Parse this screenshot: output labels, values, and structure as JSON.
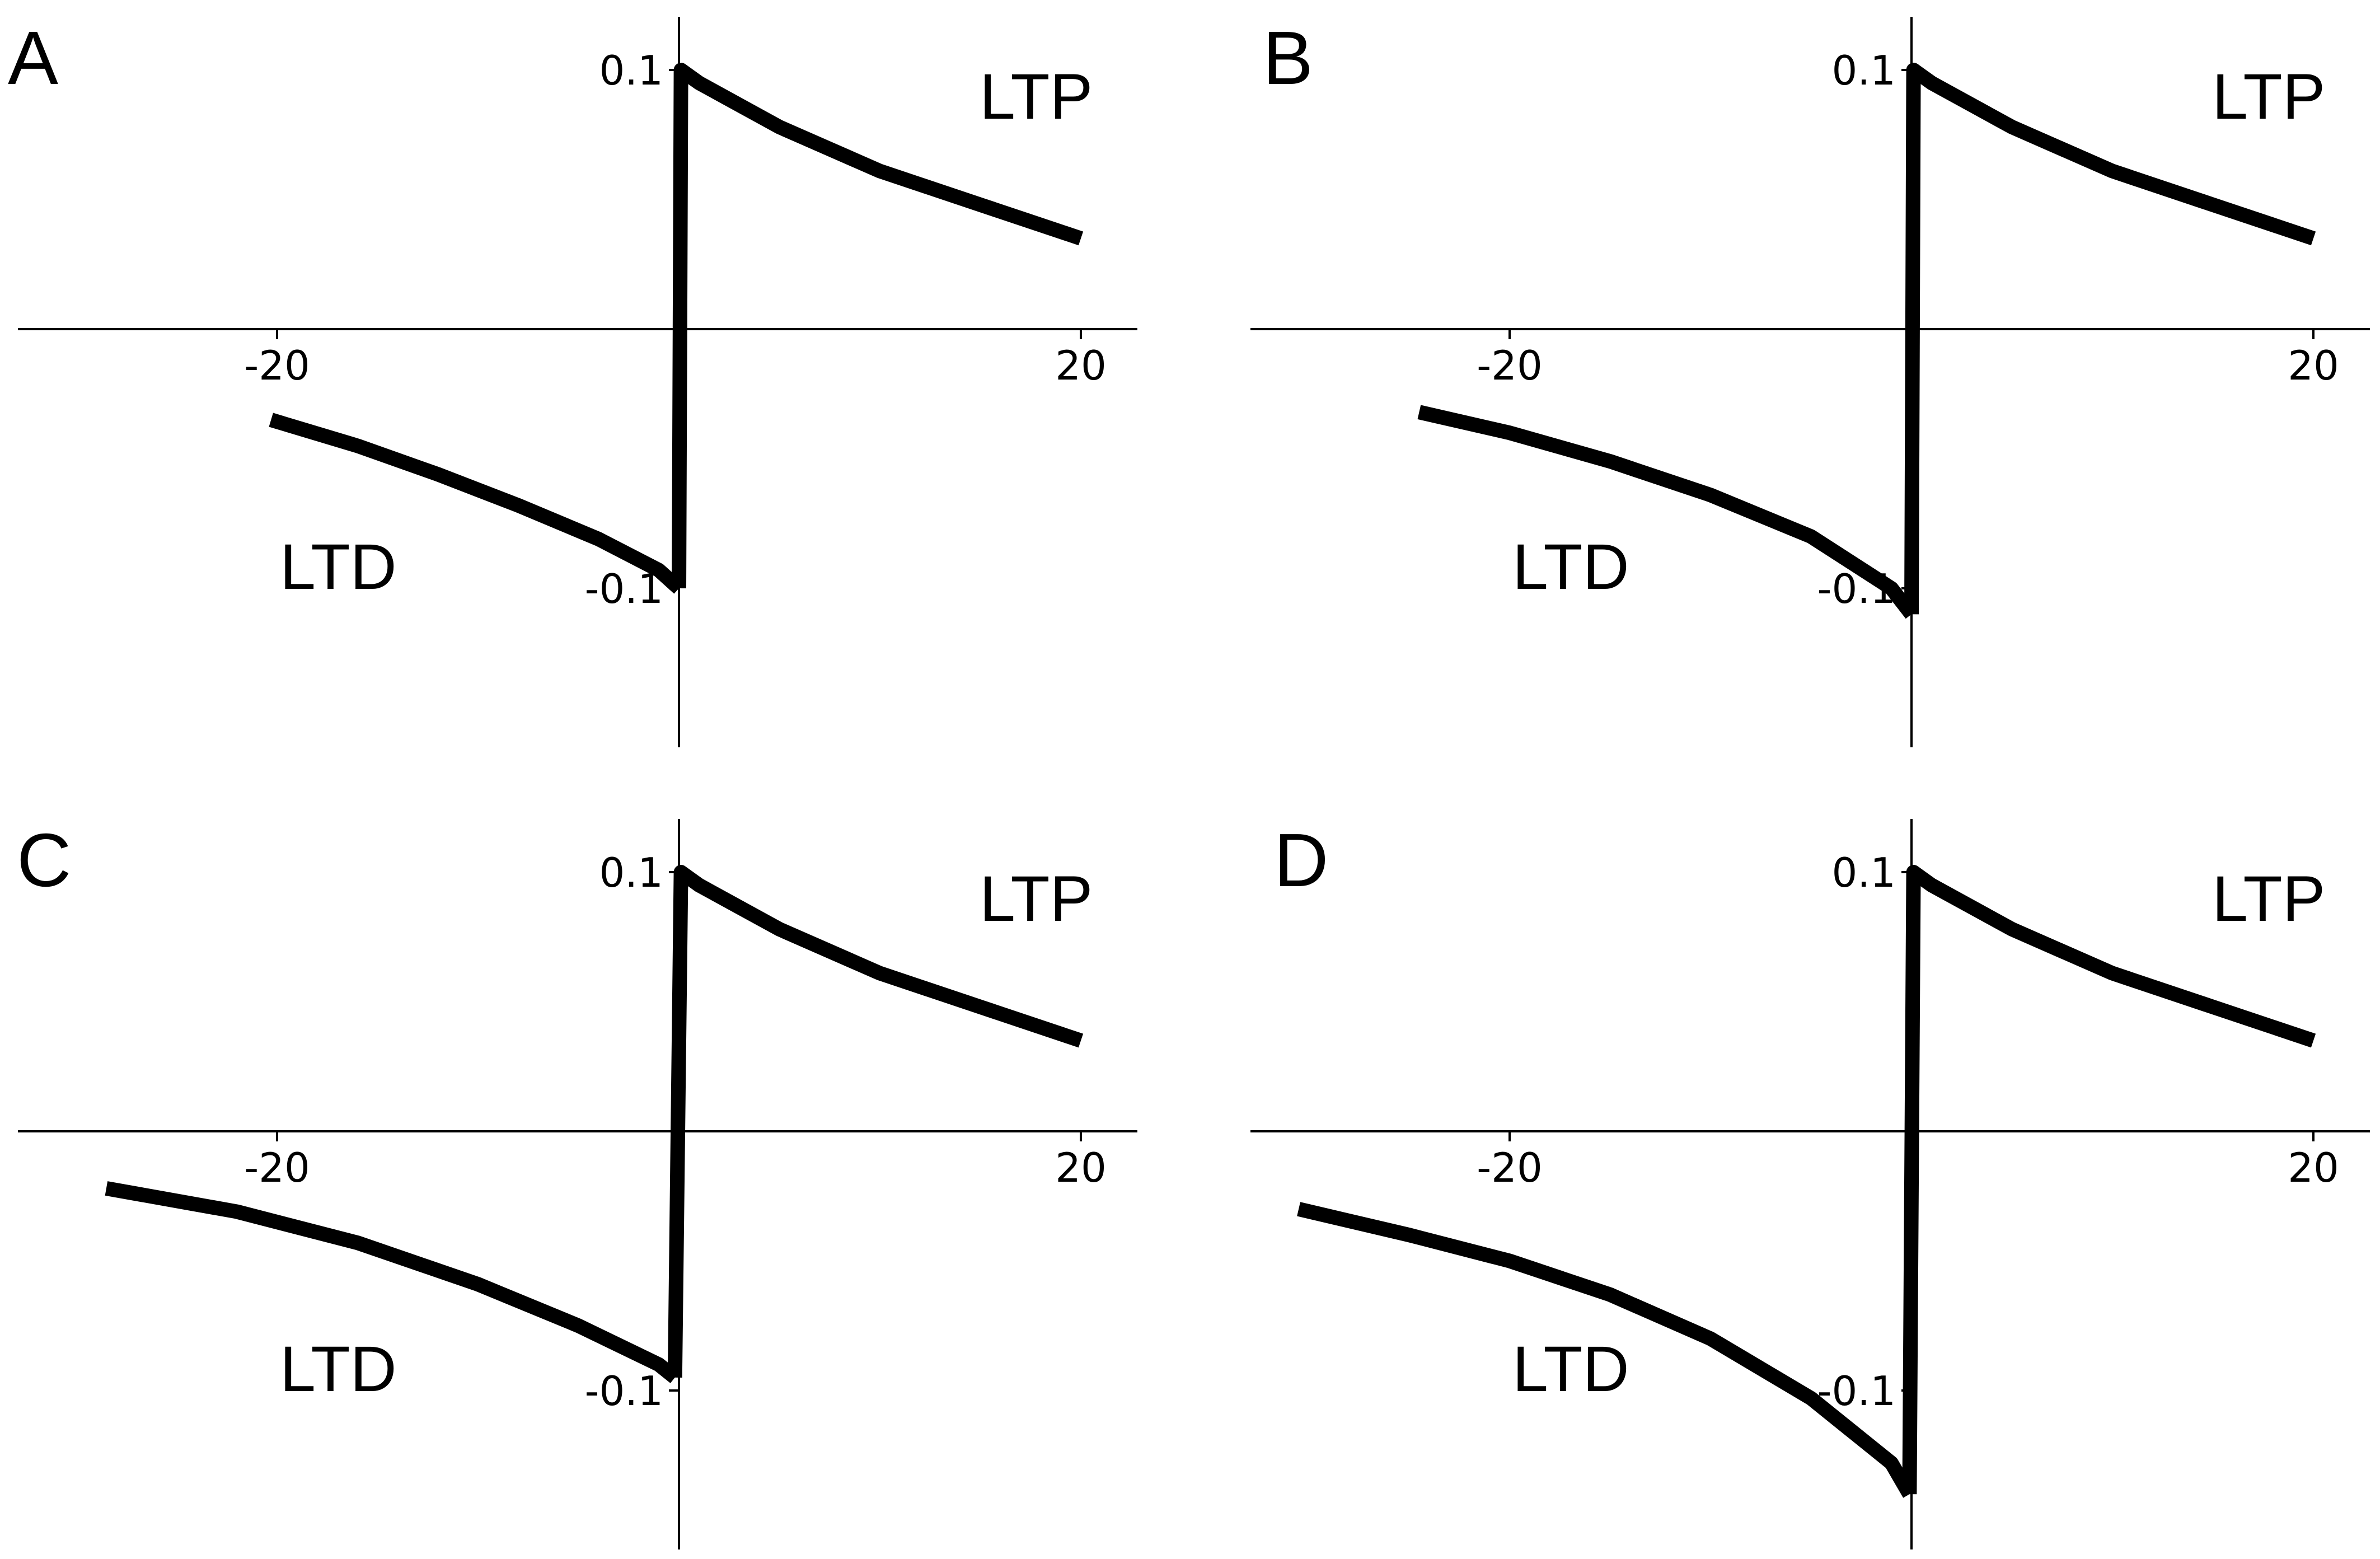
{
  "chart_data": [
    {
      "type": "line",
      "panel_label": "A",
      "x_ticks": [
        "-20",
        "20"
      ],
      "y_ticks": [
        "0.1",
        "-0.1"
      ],
      "region_labels": {
        "ltp": "LTP",
        "ltd": "LTD"
      },
      "xlim": [
        -33,
        23
      ],
      "ylim": [
        -0.16,
        0.12
      ],
      "series": [
        {
          "x": [
            -20.3,
            -16,
            -12,
            -8,
            -4,
            -1,
            0
          ],
          "y": [
            -0.035,
            -0.045,
            -0.056,
            -0.068,
            -0.081,
            -0.093,
            -0.1
          ]
        },
        {
          "x": [
            0,
            0.1,
            1,
            5,
            10,
            15,
            20
          ],
          "y": [
            -0.1,
            0.1,
            0.095,
            0.078,
            0.061,
            0.048,
            0.035
          ]
        }
      ]
    },
    {
      "type": "line",
      "panel_label": "B",
      "x_ticks": [
        "-20",
        "20"
      ],
      "y_ticks": [
        "0.1",
        "-0.1"
      ],
      "region_labels": {
        "ltp": "LTP",
        "ltd": "LTD"
      },
      "xlim": [
        -33,
        23
      ],
      "ylim": [
        -0.16,
        0.12
      ],
      "series": [
        {
          "x": [
            -24.5,
            -20,
            -15,
            -10,
            -5,
            -1,
            0
          ],
          "y": [
            -0.032,
            -0.04,
            -0.051,
            -0.064,
            -0.08,
            -0.1,
            -0.11
          ]
        },
        {
          "x": [
            0,
            0.1,
            1,
            5,
            10,
            15,
            20
          ],
          "y": [
            -0.11,
            0.1,
            0.095,
            0.078,
            0.061,
            0.048,
            0.035
          ]
        }
      ]
    },
    {
      "type": "line",
      "panel_label": "C",
      "x_ticks": [
        "-20",
        "20"
      ],
      "y_ticks": [
        "0.1",
        "-0.1"
      ],
      "region_labels": {
        "ltp": "LTP",
        "ltd": "LTD"
      },
      "xlim": [
        -33,
        23
      ],
      "ylim": [
        -0.16,
        0.12
      ],
      "series": [
        {
          "x": [
            -28.5,
            -22,
            -16,
            -10,
            -5,
            -1,
            -0.2
          ],
          "y": [
            -0.022,
            -0.031,
            -0.043,
            -0.059,
            -0.075,
            -0.09,
            -0.095
          ]
        },
        {
          "x": [
            -0.2,
            0.1,
            1,
            5,
            10,
            15,
            20
          ],
          "y": [
            -0.095,
            0.1,
            0.095,
            0.078,
            0.061,
            0.048,
            0.035
          ]
        }
      ]
    },
    {
      "type": "line",
      "panel_label": "D",
      "x_ticks": [
        "-20",
        "20"
      ],
      "y_ticks": [
        "0.1",
        "-0.1"
      ],
      "region_labels": {
        "ltp": "LTP",
        "ltd": "LTD"
      },
      "xlim": [
        -33,
        23
      ],
      "ylim": [
        -0.16,
        0.12
      ],
      "series": [
        {
          "x": [
            -30.5,
            -25,
            -20,
            -15,
            -10,
            -5,
            -1,
            -0.1
          ],
          "y": [
            -0.03,
            -0.04,
            -0.05,
            -0.063,
            -0.08,
            -0.103,
            -0.128,
            -0.14
          ]
        },
        {
          "x": [
            -0.1,
            0.1,
            1,
            5,
            10,
            15,
            20
          ],
          "y": [
            -0.14,
            0.1,
            0.095,
            0.078,
            0.061,
            0.048,
            0.035
          ]
        }
      ]
    }
  ]
}
